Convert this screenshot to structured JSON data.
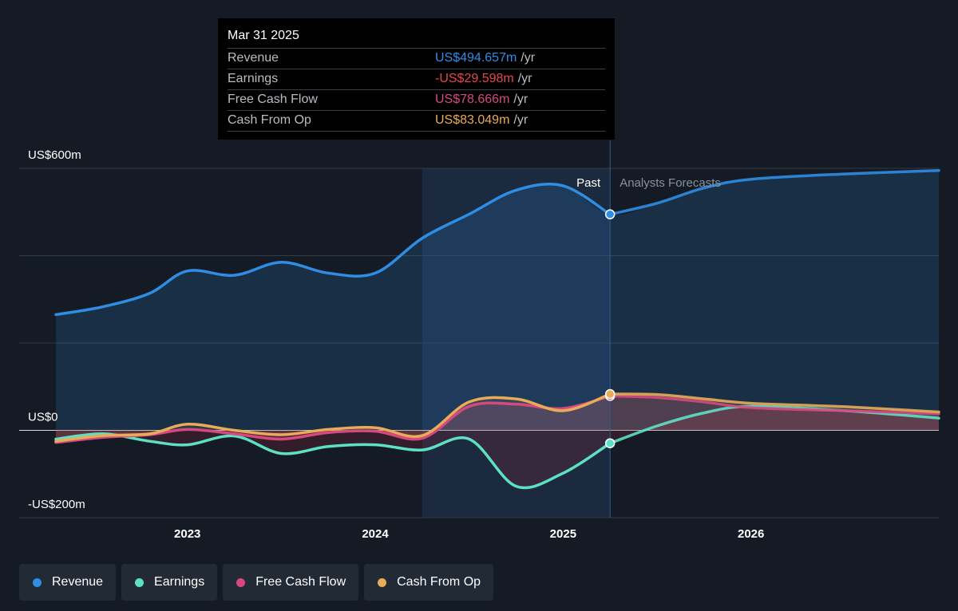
{
  "tooltip": {
    "date": "Mar 31 2025",
    "rows": [
      {
        "name": "Revenue",
        "value": "US$494.657m",
        "unit": "/yr",
        "color": "#2f8de4"
      },
      {
        "name": "Earnings",
        "value": "-US$29.598m",
        "unit": "/yr",
        "color": "#e8474c"
      },
      {
        "name": "Free Cash Flow",
        "value": "US$78.666m",
        "unit": "/yr",
        "color": "#d6497f"
      },
      {
        "name": "Cash From Op",
        "value": "US$83.049m",
        "unit": "/yr",
        "color": "#e8ac58"
      }
    ]
  },
  "legend": [
    {
      "label": "Revenue",
      "color": "#2f8de4"
    },
    {
      "label": "Earnings",
      "color": "#5ee0c5"
    },
    {
      "label": "Free Cash Flow",
      "color": "#d6497f"
    },
    {
      "label": "Cash From Op",
      "color": "#e8ac58"
    }
  ],
  "chart_data": {
    "type": "line",
    "y_tick_labels": [
      "US$600m",
      "US$0",
      "-US$200m"
    ],
    "ylim": [
      -200,
      600
    ],
    "xlim": [
      2022.3,
      2027.0
    ],
    "x_ticks": [
      2023,
      2024,
      2025,
      2026
    ],
    "x_tick_labels": [
      "2023",
      "2024",
      "2025",
      "2026"
    ],
    "past_label": "Past",
    "forecast_label": "Analysts Forecasts",
    "past_region_start": 2024.25,
    "divider_x": 2025.25,
    "series": [
      {
        "name": "Revenue",
        "color": "#2f8de4",
        "points": [
          [
            2022.3,
            265
          ],
          [
            2022.55,
            283
          ],
          [
            2022.8,
            314
          ],
          [
            2023.0,
            365
          ],
          [
            2023.25,
            355
          ],
          [
            2023.5,
            385
          ],
          [
            2023.75,
            360
          ],
          [
            2024.0,
            360
          ],
          [
            2024.25,
            440
          ],
          [
            2024.5,
            495
          ],
          [
            2024.75,
            550
          ],
          [
            2025.0,
            560
          ],
          [
            2025.25,
            494.657
          ]
        ],
        "forecast": [
          [
            2025.25,
            494.657
          ],
          [
            2025.5,
            520
          ],
          [
            2025.75,
            555
          ],
          [
            2026.0,
            575
          ],
          [
            2026.5,
            587
          ],
          [
            2027.0,
            595
          ]
        ]
      },
      {
        "name": "Earnings",
        "color": "#5ee0c5",
        "points": [
          [
            2022.3,
            -20
          ],
          [
            2022.55,
            -8
          ],
          [
            2022.8,
            -25
          ],
          [
            2023.0,
            -33
          ],
          [
            2023.25,
            -13
          ],
          [
            2023.5,
            -53
          ],
          [
            2023.75,
            -37
          ],
          [
            2024.0,
            -33
          ],
          [
            2024.25,
            -45
          ],
          [
            2024.5,
            -20
          ],
          [
            2024.75,
            -128
          ],
          [
            2025.0,
            -98
          ],
          [
            2025.25,
            -29.598
          ]
        ],
        "forecast": [
          [
            2025.25,
            -29.598
          ],
          [
            2025.5,
            10
          ],
          [
            2025.75,
            40
          ],
          [
            2026.0,
            55
          ],
          [
            2026.5,
            45
          ],
          [
            2027.0,
            28
          ]
        ]
      },
      {
        "name": "Free Cash Flow",
        "color": "#d6497f",
        "points": [
          [
            2022.3,
            -28
          ],
          [
            2022.55,
            -16
          ],
          [
            2022.8,
            -10
          ],
          [
            2023.0,
            2
          ],
          [
            2023.25,
            -8
          ],
          [
            2023.5,
            -20
          ],
          [
            2023.75,
            -5
          ],
          [
            2024.0,
            -2
          ],
          [
            2024.25,
            -18
          ],
          [
            2024.5,
            55
          ],
          [
            2024.75,
            60
          ],
          [
            2025.0,
            50
          ],
          [
            2025.25,
            78.666
          ]
        ],
        "forecast": [
          [
            2025.25,
            78.666
          ],
          [
            2025.5,
            75
          ],
          [
            2025.75,
            65
          ],
          [
            2026.0,
            52
          ],
          [
            2026.5,
            45
          ],
          [
            2027.0,
            38
          ]
        ]
      },
      {
        "name": "Cash From Op",
        "color": "#e8ac58",
        "points": [
          [
            2022.3,
            -25
          ],
          [
            2022.55,
            -12
          ],
          [
            2022.8,
            -8
          ],
          [
            2023.0,
            14
          ],
          [
            2023.25,
            0
          ],
          [
            2023.5,
            -10
          ],
          [
            2023.75,
            2
          ],
          [
            2024.0,
            6
          ],
          [
            2024.25,
            -12
          ],
          [
            2024.5,
            65
          ],
          [
            2024.75,
            72
          ],
          [
            2025.0,
            45
          ],
          [
            2025.25,
            83.049
          ]
        ],
        "forecast": [
          [
            2025.25,
            83.049
          ],
          [
            2025.5,
            82
          ],
          [
            2025.75,
            72
          ],
          [
            2026.0,
            62
          ],
          [
            2026.5,
            54
          ],
          [
            2027.0,
            42
          ]
        ]
      }
    ]
  }
}
